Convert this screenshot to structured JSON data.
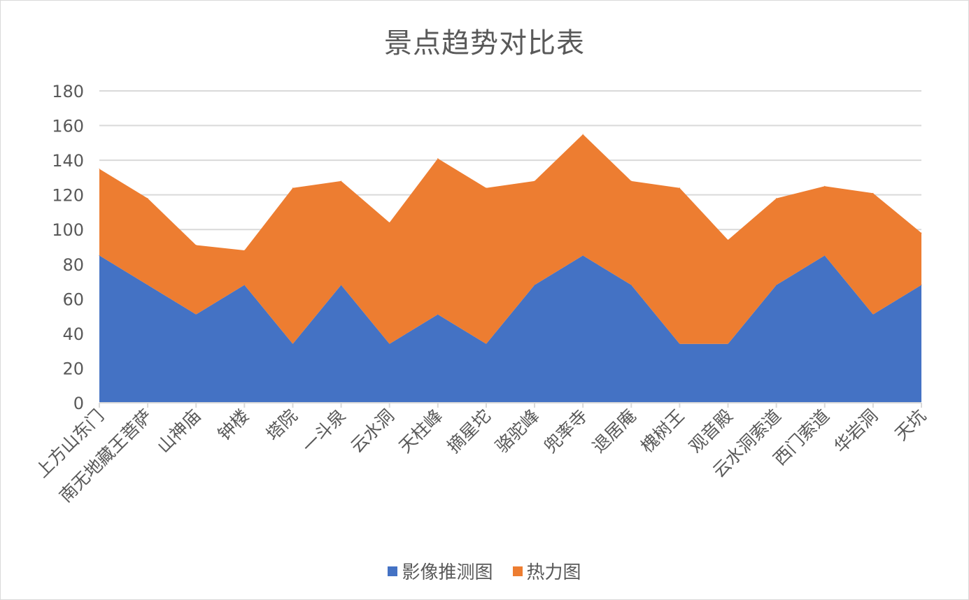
{
  "chart_data": {
    "type": "area",
    "stacked": true,
    "title": "景点趋势对比表",
    "categories": [
      "上方山东门",
      "南无地藏王菩萨",
      "山神庙",
      "钟楼",
      "塔院",
      "一斗泉",
      "云水洞",
      "天柱峰",
      "摘星坨",
      "骆驼峰",
      "兜率寺",
      "退居庵",
      "槐树王",
      "观音殿",
      "云水洞索道",
      "西门索道",
      "华岩洞",
      "天坑"
    ],
    "series": [
      {
        "name": "影像推测图",
        "color": "#4472C4",
        "values": [
          85,
          68,
          51,
          68,
          34,
          68,
          34,
          51,
          34,
          68,
          85,
          68,
          34,
          34,
          68,
          85,
          51,
          68
        ]
      },
      {
        "name": "热力图",
        "color": "#ED7D31",
        "values": [
          50,
          50,
          40,
          20,
          90,
          60,
          70,
          90,
          90,
          60,
          70,
          60,
          90,
          60,
          50,
          40,
          70,
          30
        ]
      }
    ],
    "ylim": [
      0,
      180
    ],
    "yticks": [
      "0",
      "20",
      "40",
      "60",
      "80",
      "100",
      "120",
      "140",
      "160",
      "180"
    ],
    "grid": true,
    "legend_position": "bottom"
  }
}
